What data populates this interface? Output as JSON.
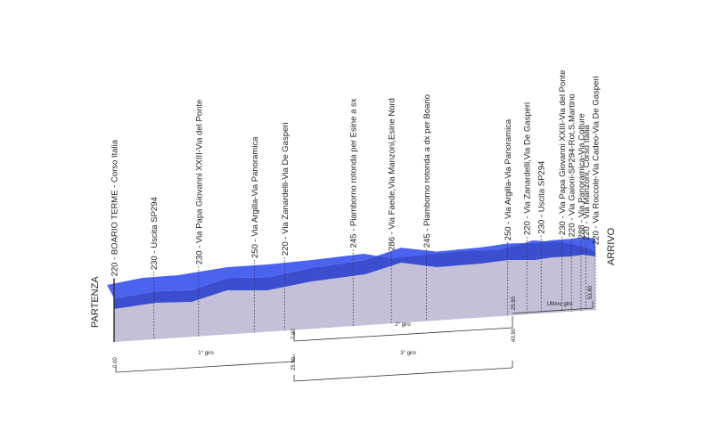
{
  "colors": {
    "top_face": "#4a63f0",
    "front_face": "#3a4ecf",
    "base": "#c3c0d8",
    "base_dark": "#aaa6c4",
    "line": "#333333"
  },
  "start_label": "PARTENZA",
  "finish_label": "ARRIVO",
  "chart_data": {
    "type": "area",
    "title": "",
    "points": [
      {
        "km": 0.0,
        "alt": 220,
        "label": "220 - BOARIO TERME - Corso Italia"
      },
      {
        "km": 2.5,
        "alt": 230,
        "label": "230 - Uscita SP294"
      },
      {
        "km": 5.3,
        "alt": 230,
        "label": "230 - Via Papa Giovanni XXIII-Via del Ponte"
      },
      {
        "km": 8.8,
        "alt": 250,
        "label": "250 - Via Argilla-Via Panoramica"
      },
      {
        "km": 10.7,
        "alt": 220,
        "label": "220 - Via Zanardelli-Via De Gasperi"
      },
      {
        "km": 15.0,
        "alt": 245,
        "label": "245 - Piamborno rotonda per Esine a sx"
      },
      {
        "km": 17.4,
        "alt": 286,
        "label": "286 - Via Faede,Via Manzoni,Esine Nord"
      },
      {
        "km": 19.6,
        "alt": 245,
        "label": "245 - Piamborno rotonda a dx per Boario"
      },
      {
        "km": 24.7,
        "alt": 250,
        "label": "250 - Via Argilla-Via Panoramica"
      },
      {
        "km": 25.9,
        "alt": 220,
        "label": "220 - Via Zanardelli,Via De Gasperi"
      },
      {
        "km": 26.8,
        "alt": 230,
        "label": "230 - Uscita SP294"
      },
      {
        "km": 28.1,
        "alt": 230,
        "label": "230 - Via Papa Giovanni XXIII-Via del Ponte"
      },
      {
        "km": 28.7,
        "alt": 220,
        "label": "220 - Via Gaioni-SP294-Rot.S.Martino"
      },
      {
        "km": 29.3,
        "alt": 288,
        "label": "288 - Via Panoramica-Via Colture"
      },
      {
        "km": 29.6,
        "alt": 220,
        "label": "220 - Via Manzoni, Corso Italia"
      },
      {
        "km": 30.2,
        "alt": 220,
        "label": "220 - Via Roccole-Via Cadeo-Via De Gasperi"
      }
    ],
    "km_markers": [
      {
        "km": 0.0,
        "label": "0.00"
      },
      {
        "km": 11.9,
        "label": "7.90"
      },
      {
        "km": 11.9,
        "label": "25.90"
      },
      {
        "km": 25.9,
        "label": "43.90"
      },
      {
        "km": 25.9,
        "label": "25.90"
      },
      {
        "km": 30.2,
        "label": "53.80"
      }
    ],
    "laps": [
      {
        "label": "1° giro"
      },
      {
        "label": "2° giro"
      },
      {
        "label": "3° giro"
      },
      {
        "label": "Ultimo giro"
      }
    ]
  }
}
